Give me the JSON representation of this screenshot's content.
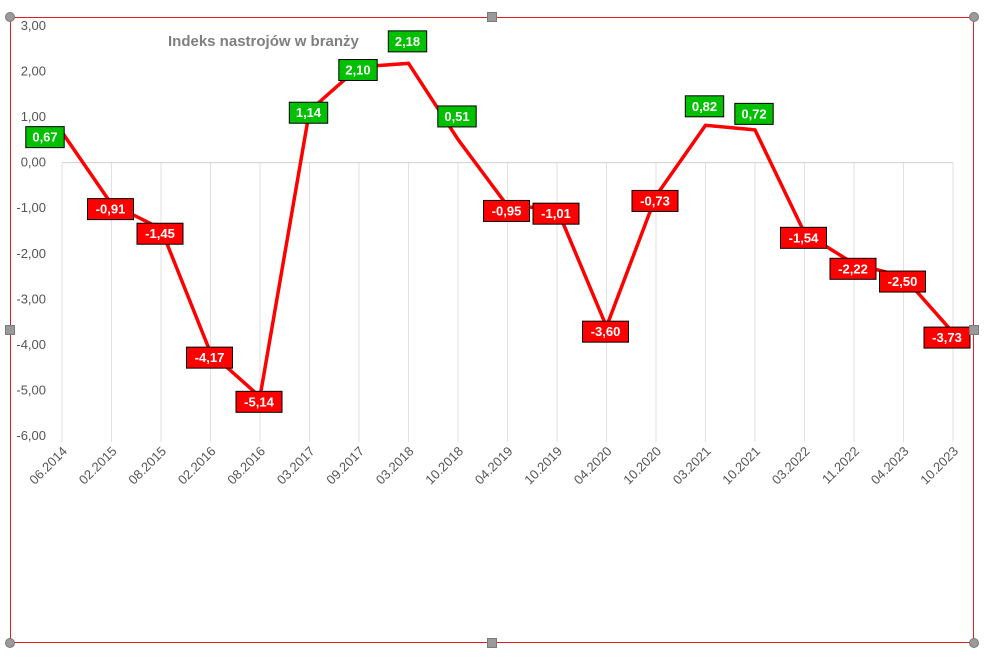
{
  "chart_data": {
    "type": "line",
    "title": "Indeks nastrojów w branży",
    "categories": [
      "06.2014",
      "02.2015",
      "08.2015",
      "02.2016",
      "08.2016",
      "03.2017",
      "09.2017",
      "03.2018",
      "10.2018",
      "04.2019",
      "10.2019",
      "04.2020",
      "10.2020",
      "03.2021",
      "10.2021",
      "03.2022",
      "11.2022",
      "04.2023",
      "10.2023"
    ],
    "y_ticks": [
      "3,00",
      "2,00",
      "1,00",
      "0,00",
      "-1,00",
      "-2,00",
      "-3,00",
      "-4,00",
      "-5,00",
      "-6,00"
    ],
    "ylim": [
      -6,
      3
    ],
    "grid": "vertical",
    "legend": "none",
    "series": [
      {
        "values": [
          0.67,
          -0.91,
          -1.45,
          -4.17,
          -5.14,
          1.14,
          2.1,
          2.18,
          0.51,
          -0.95,
          -1.01,
          -3.6,
          -0.73,
          0.82,
          0.72,
          -1.54,
          -2.22,
          -2.5,
          -3.73
        ],
        "labels": [
          "0,67",
          "-0,91",
          "-1,45",
          "-4,17",
          "-5,14",
          "1,14",
          "2,10",
          "2,18",
          "0,51",
          "-0,95",
          "-1,01",
          "-3,60",
          "-0,73",
          "0,82",
          "0,72",
          "-1,54",
          "-2,22",
          "-2,50",
          "-3,73"
        ],
        "color": "#ff0000"
      }
    ],
    "colors": {
      "positive": "#00c000",
      "negative": "#ff0000"
    }
  }
}
